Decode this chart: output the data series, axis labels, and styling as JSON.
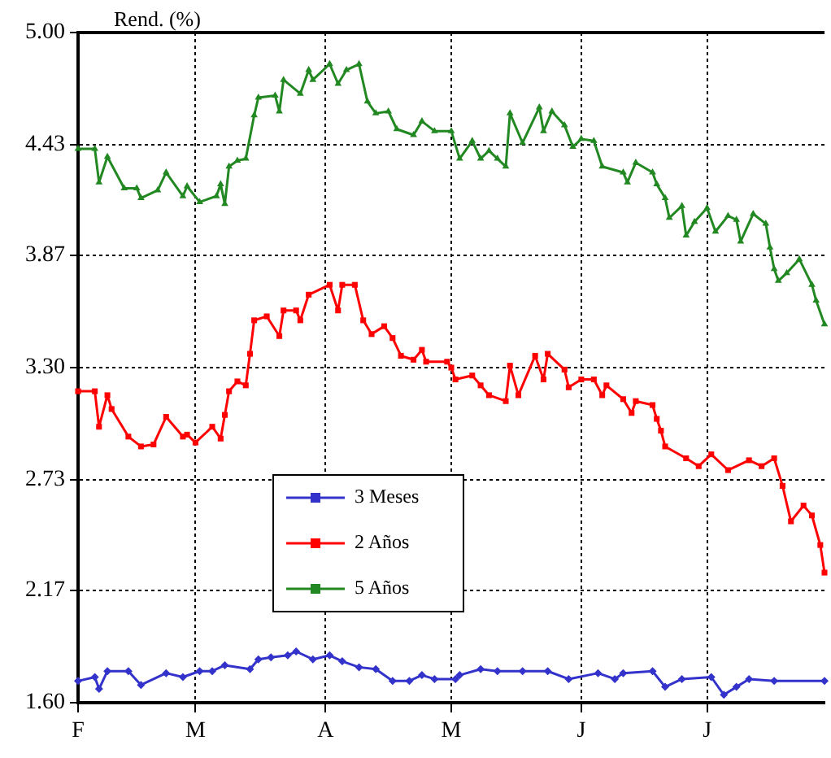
{
  "chart_data": {
    "type": "line",
    "ylabel": "Rend. (%)",
    "categories": [
      "F",
      null,
      null,
      null,
      null,
      null,
      null,
      null,
      null,
      null,
      null,
      null,
      null,
      null,
      null,
      null,
      null,
      null,
      null,
      null,
      null,
      null,
      null,
      null,
      null,
      null,
      null,
      null,
      "M",
      null,
      null,
      null,
      null,
      null,
      null,
      null,
      null,
      null,
      null,
      null,
      null,
      null,
      null,
      null,
      null,
      null,
      null,
      null,
      null,
      null,
      null,
      null,
      null,
      null,
      null,
      null,
      null,
      null,
      null,
      "A",
      null,
      null,
      null,
      null,
      null,
      null,
      null,
      null,
      null,
      null,
      null,
      null,
      null,
      null,
      null,
      null,
      null,
      null,
      null,
      null,
      null,
      null,
      null,
      null,
      null,
      null,
      null,
      null,
      null,
      "M",
      null,
      null,
      null,
      null,
      null,
      null,
      null,
      null,
      null,
      null,
      null,
      null,
      null,
      null,
      null,
      null,
      null,
      null,
      null,
      null,
      null,
      null,
      null,
      null,
      null,
      null,
      null,
      null,
      null,
      null,
      "J",
      null,
      null,
      null,
      null,
      null,
      null,
      null,
      null,
      null,
      null,
      null,
      null,
      null,
      null,
      null,
      null,
      null,
      null,
      null,
      null,
      null,
      null,
      null,
      null,
      null,
      null,
      null,
      null,
      null,
      "J",
      null,
      null,
      null,
      null,
      null,
      null,
      null,
      null,
      null,
      null,
      null,
      null,
      null,
      null,
      null,
      null,
      null,
      null,
      null,
      null,
      null,
      null,
      null,
      null,
      null,
      null,
      null,
      null
    ],
    "ylim": [
      1.6,
      5.0
    ],
    "yticks": [
      {
        "value": 1.6,
        "label": "1.60"
      },
      {
        "value": 2.17,
        "label": "2.17"
      },
      {
        "value": 2.73,
        "label": "2.73"
      },
      {
        "value": 3.3,
        "label": "3.30"
      },
      {
        "value": 3.87,
        "label": "3.87"
      },
      {
        "value": 4.43,
        "label": "4.43"
      },
      {
        "value": 5.0,
        "label": "5.00"
      }
    ],
    "grid": true,
    "legend": "bottom",
    "line_style": "solid",
    "series": [
      {
        "name": "3 Meses",
        "color": "#3333cc",
        "marker": "diamond",
        "values": [
          1.71,
          null,
          null,
          null,
          1.73,
          1.67,
          null,
          1.76,
          null,
          null,
          null,
          null,
          1.76,
          null,
          null,
          1.69,
          null,
          null,
          null,
          null,
          null,
          1.75,
          null,
          null,
          null,
          1.73,
          null,
          null,
          null,
          1.76,
          null,
          null,
          1.76,
          null,
          null,
          1.79,
          null,
          null,
          null,
          null,
          null,
          1.77,
          null,
          1.82,
          null,
          null,
          1.83,
          null,
          null,
          null,
          1.84,
          null,
          1.86,
          null,
          null,
          null,
          1.82,
          null,
          null,
          null,
          1.84,
          null,
          null,
          1.81,
          null,
          null,
          null,
          1.78,
          null,
          null,
          null,
          1.77,
          null,
          null,
          null,
          1.71,
          null,
          null,
          null,
          1.71,
          null,
          null,
          1.74,
          null,
          null,
          1.72,
          null,
          null,
          null,
          null,
          1.72,
          1.74,
          null,
          null,
          null,
          null,
          1.77,
          null,
          null,
          null,
          1.76,
          null,
          null,
          null,
          null,
          null,
          1.76,
          null,
          null,
          null,
          null,
          null,
          1.76,
          null,
          null,
          null,
          null,
          1.72,
          null,
          null,
          null,
          null,
          null,
          null,
          1.75,
          null,
          null,
          null,
          1.72,
          null,
          1.75,
          null,
          null,
          null,
          null,
          null,
          null,
          1.76,
          null,
          null,
          1.68,
          null,
          null,
          null,
          1.72,
          null,
          null,
          null,
          null,
          null,
          null,
          1.73,
          null,
          null,
          1.64,
          null,
          null,
          1.68,
          null,
          null,
          1.72,
          null,
          null,
          null,
          null,
          null,
          1.71,
          null,
          null,
          null,
          null,
          null,
          null,
          null,
          null,
          null,
          null,
          null,
          1.71
        ]
      },
      {
        "name": "2 Años",
        "color": "#ff0000",
        "marker": "square",
        "values": [
          3.18,
          null,
          null,
          null,
          3.18,
          3.0,
          null,
          3.16,
          3.09,
          null,
          null,
          null,
          2.95,
          null,
          null,
          2.9,
          null,
          null,
          2.91,
          null,
          null,
          3.05,
          null,
          null,
          null,
          2.95,
          2.96,
          null,
          2.92,
          null,
          null,
          null,
          3.0,
          null,
          2.94,
          3.06,
          3.18,
          null,
          3.23,
          null,
          3.21,
          3.37,
          3.54,
          null,
          null,
          3.56,
          null,
          null,
          3.46,
          3.59,
          null,
          null,
          3.59,
          3.54,
          null,
          3.67,
          null,
          null,
          null,
          null,
          3.72,
          null,
          3.59,
          3.72,
          null,
          null,
          3.72,
          null,
          3.54,
          null,
          3.47,
          null,
          null,
          3.51,
          null,
          3.45,
          null,
          3.36,
          null,
          null,
          3.34,
          null,
          3.39,
          3.33,
          null,
          null,
          null,
          null,
          3.33,
          3.3,
          3.24,
          null,
          null,
          null,
          3.26,
          null,
          3.21,
          null,
          3.16,
          null,
          null,
          null,
          3.13,
          3.31,
          null,
          3.16,
          null,
          null,
          null,
          3.36,
          null,
          3.24,
          3.37,
          null,
          null,
          null,
          3.29,
          3.2,
          null,
          null,
          3.24,
          null,
          null,
          3.24,
          null,
          3.16,
          3.21,
          null,
          null,
          null,
          3.14,
          null,
          3.07,
          3.13,
          null,
          null,
          null,
          3.11,
          3.04,
          2.98,
          2.9,
          null,
          null,
          null,
          null,
          2.84,
          null,
          null,
          2.8,
          null,
          null,
          2.86,
          null,
          null,
          null,
          2.78,
          null,
          null,
          null,
          null,
          2.83,
          null,
          null,
          2.8,
          null,
          null,
          2.84,
          null,
          2.7,
          null,
          2.52,
          null,
          null,
          2.6,
          null,
          2.55,
          null,
          2.4,
          2.26
        ]
      },
      {
        "name": "5 Años",
        "color": "#228822",
        "marker": "triangle",
        "values": [
          4.41,
          null,
          null,
          null,
          4.41,
          4.24,
          null,
          4.37,
          null,
          null,
          null,
          4.21,
          null,
          null,
          4.21,
          4.16,
          null,
          null,
          null,
          4.2,
          null,
          4.29,
          null,
          null,
          null,
          4.17,
          4.22,
          null,
          null,
          4.14,
          null,
          null,
          null,
          4.17,
          4.23,
          4.13,
          4.32,
          null,
          4.35,
          null,
          4.36,
          null,
          4.58,
          4.67,
          null,
          null,
          null,
          4.68,
          4.6,
          4.76,
          null,
          null,
          null,
          4.69,
          null,
          4.81,
          4.76,
          null,
          null,
          null,
          4.84,
          null,
          4.74,
          null,
          4.81,
          null,
          null,
          4.84,
          null,
          4.65,
          null,
          4.59,
          null,
          null,
          4.6,
          null,
          4.51,
          null,
          null,
          null,
          4.48,
          null,
          4.55,
          null,
          null,
          4.5,
          null,
          null,
          null,
          4.5,
          null,
          4.36,
          null,
          null,
          4.45,
          null,
          4.36,
          null,
          4.4,
          null,
          4.36,
          null,
          4.32,
          4.59,
          null,
          null,
          4.44,
          null,
          null,
          null,
          4.62,
          4.5,
          null,
          4.6,
          null,
          null,
          4.53,
          null,
          4.42,
          null,
          4.46,
          null,
          null,
          4.45,
          null,
          4.32,
          null,
          null,
          null,
          null,
          4.29,
          4.24,
          null,
          4.34,
          null,
          null,
          null,
          4.29,
          4.23,
          null,
          4.16,
          4.06,
          null,
          null,
          4.12,
          3.97,
          null,
          4.04,
          null,
          null,
          4.11,
          null,
          3.99,
          null,
          null,
          4.07,
          null,
          4.05,
          3.94,
          null,
          null,
          4.08,
          null,
          null,
          4.03,
          3.91,
          3.8,
          3.74,
          null,
          3.78,
          null,
          null,
          3.85,
          null,
          null,
          3.72,
          3.64,
          null,
          3.52
        ]
      }
    ]
  }
}
